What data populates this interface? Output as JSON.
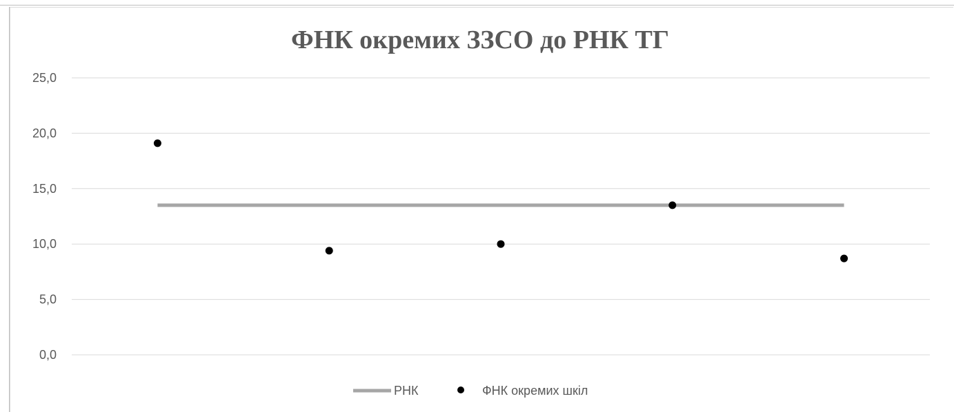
{
  "chart_data": {
    "type": "scatter",
    "title": "ФНК окремих ЗЗСО до РНК ТГ",
    "xlabel": "",
    "ylabel": "",
    "ylim": [
      0,
      25
    ],
    "yticks": [
      "0,0",
      "5,0",
      "10,0",
      "15,0",
      "20,0",
      "25,0"
    ],
    "x": [
      1,
      2,
      3,
      4,
      5
    ],
    "grid": true,
    "legend_position": "bottom",
    "series": [
      {
        "name": "РНК",
        "kind": "line",
        "color": "#a6a6a6",
        "values": [
          13.5,
          13.5,
          13.5,
          13.5,
          13.5
        ]
      },
      {
        "name": "ФНК окремих шкіл",
        "kind": "markers",
        "color": "#000000",
        "values": [
          19.1,
          9.4,
          10.0,
          13.5,
          8.7
        ]
      }
    ]
  }
}
